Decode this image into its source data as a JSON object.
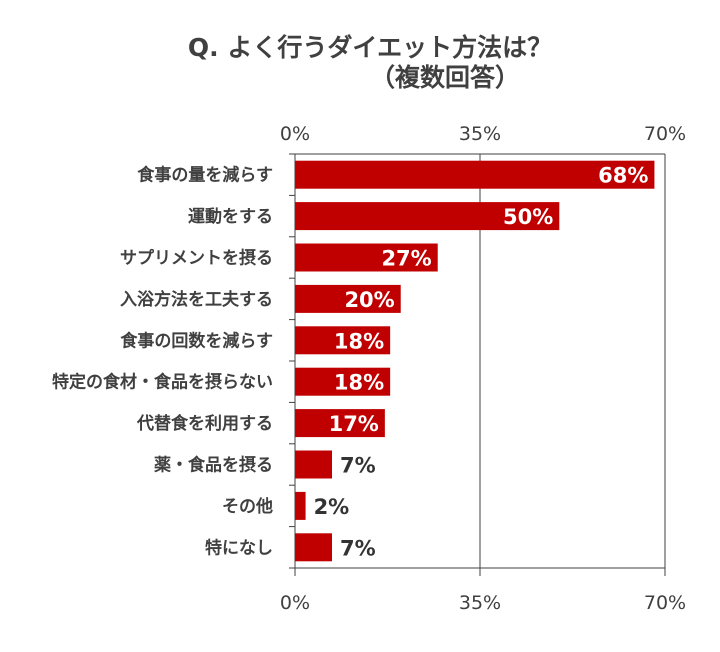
{
  "chart_data": {
    "type": "bar",
    "orientation": "horizontal",
    "title": "Q. よく行うダイエット方法は？",
    "subtitle": "（複数回答）",
    "categories": [
      "食事の量を減らす",
      "運動をする",
      "サプリメントを摂る",
      "入浴方法を工夫する",
      "食事の回数を減らす",
      "特定の食材・食品を摂らない",
      "代替食を利用する",
      "薬・食品を摂る",
      "その他",
      "特になし"
    ],
    "values": [
      68,
      50,
      27,
      20,
      18,
      18,
      17,
      7,
      2,
      7
    ],
    "value_labels": [
      "68%",
      "50%",
      "27%",
      "20%",
      "18%",
      "18%",
      "17%",
      "7%",
      "2%",
      "7%"
    ],
    "xlim": [
      0,
      70
    ],
    "x_ticks": [
      "0%",
      "35%",
      "70%"
    ],
    "x_tick_values": [
      0,
      35,
      70
    ],
    "xlabel": "",
    "ylabel": "",
    "grid": true,
    "bar_color": "#c00000"
  }
}
